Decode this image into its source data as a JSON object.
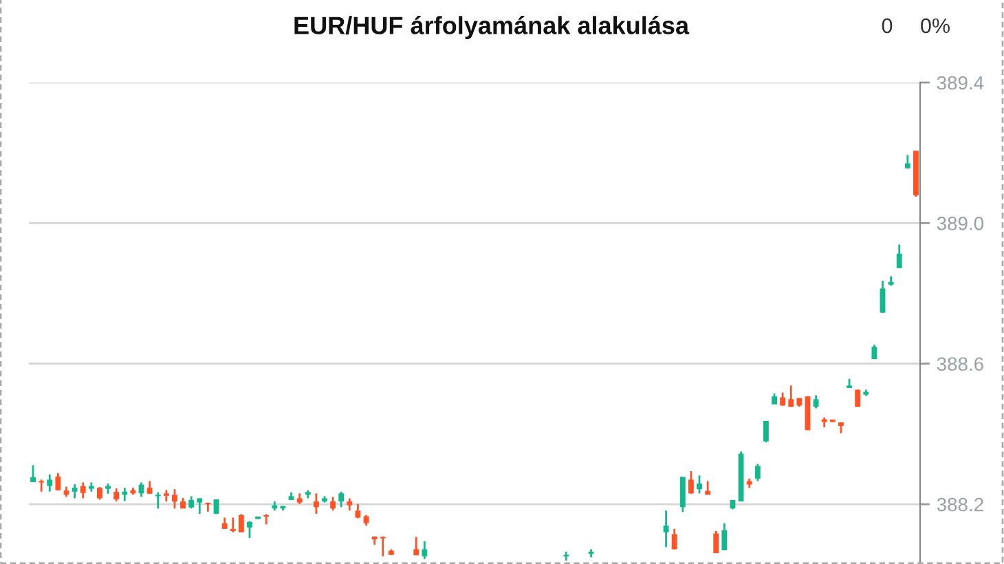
{
  "chart_data": {
    "type": "candlestick",
    "title": "EUR/HUF árfolyamának alakulása",
    "annotations": [
      "0",
      "0%"
    ],
    "categories": [
      null,
      null,
      null,
      null,
      null,
      null,
      null,
      null,
      null,
      null,
      null,
      null,
      null,
      null,
      null,
      null,
      null,
      null,
      null,
      null,
      null,
      null,
      null,
      null,
      null,
      null,
      null,
      null,
      null,
      null,
      null,
      null,
      null,
      null,
      null,
      null,
      null,
      null,
      null,
      null,
      null,
      null,
      null,
      null,
      null,
      null,
      null,
      null,
      null,
      null,
      null,
      null,
      null,
      null,
      null,
      null,
      null,
      null,
      null,
      null,
      null,
      null,
      null,
      null,
      null,
      null,
      null,
      null,
      null,
      null,
      null,
      null,
      null,
      null,
      null,
      null,
      null,
      null,
      null,
      null,
      null,
      null,
      null,
      null,
      null,
      null,
      null,
      null,
      null,
      null,
      null,
      null,
      null,
      null,
      null,
      null,
      null,
      null,
      null,
      null,
      null,
      null,
      null,
      null,
      null,
      null,
      null
    ],
    "ohlc": [
      [
        388.263,
        388.311,
        388.263,
        388.277
      ],
      [
        388.266,
        388.27,
        388.236,
        388.262
      ],
      [
        388.252,
        388.285,
        388.236,
        388.27
      ],
      [
        388.279,
        388.289,
        388.239,
        388.24
      ],
      [
        388.239,
        388.25,
        388.221,
        388.227
      ],
      [
        388.236,
        388.257,
        388.217,
        388.247
      ],
      [
        388.252,
        388.262,
        388.217,
        388.232
      ],
      [
        388.244,
        388.262,
        388.236,
        388.252
      ],
      [
        388.247,
        388.249,
        388.213,
        388.217
      ],
      [
        388.244,
        388.259,
        388.23,
        388.252
      ],
      [
        388.235,
        388.245,
        388.208,
        388.214
      ],
      [
        388.227,
        388.247,
        388.209,
        388.236
      ],
      [
        388.24,
        388.247,
        388.227,
        388.231
      ],
      [
        388.231,
        388.262,
        388.221,
        388.256
      ],
      [
        388.247,
        388.266,
        388.23,
        388.23
      ],
      [
        388.223,
        388.234,
        388.188,
        388.227
      ],
      [
        388.231,
        388.24,
        388.208,
        388.224
      ],
      [
        388.227,
        388.243,
        388.188,
        388.208
      ],
      [
        388.208,
        388.218,
        388.188,
        388.188
      ],
      [
        388.191,
        388.223,
        388.188,
        388.212
      ],
      [
        388.205,
        388.217,
        388.173,
        388.217
      ],
      [
        388.204,
        388.205,
        388.179,
        388.2
      ],
      [
        388.173,
        388.214,
        388.172,
        388.214
      ],
      [
        388.146,
        388.162,
        388.13,
        388.13
      ],
      [
        388.13,
        388.162,
        388.12,
        388.124
      ],
      [
        388.169,
        388.172,
        388.12,
        388.12
      ],
      [
        388.134,
        388.152,
        388.104,
        388.15
      ],
      [
        388.158,
        388.165,
        388.158,
        388.165
      ],
      [
        388.169,
        388.172,
        388.143,
        388.165
      ],
      [
        388.188,
        388.208,
        388.182,
        388.197
      ],
      [
        388.188,
        388.195,
        388.182,
        388.195
      ],
      [
        388.212,
        388.234,
        388.212,
        388.223
      ],
      [
        388.217,
        388.231,
        388.201,
        388.205
      ],
      [
        388.227,
        388.24,
        388.217,
        388.235
      ],
      [
        388.208,
        388.231,
        388.173,
        388.192
      ],
      [
        388.208,
        388.223,
        388.205,
        388.217
      ],
      [
        388.208,
        388.221,
        388.182,
        388.188
      ],
      [
        388.208,
        388.236,
        388.192,
        388.231
      ],
      [
        388.208,
        388.217,
        388.182,
        388.197
      ],
      [
        388.182,
        388.201,
        388.16,
        388.162
      ],
      [
        388.166,
        388.169,
        388.139,
        388.146
      ],
      [
        388.108,
        388.108,
        388.085,
        388.1
      ],
      [
        388.107,
        388.108,
        388.052,
        388.103
      ],
      [
        388.068,
        388.072,
        388.056,
        388.056
      ],
      null,
      null,
      [
        388.072,
        388.107,
        388.055,
        388.055
      ],
      [
        388.052,
        388.095,
        388.044,
        388.072
      ],
      null,
      null,
      null,
      null,
      null,
      null,
      null,
      null,
      null,
      null,
      null,
      null,
      null,
      null,
      null,
      null,
      [
        388.052,
        388.065,
        388.04,
        388.056
      ],
      null,
      null,
      [
        388.059,
        388.072,
        388.049,
        388.065
      ],
      null,
      null,
      null,
      null,
      null,
      null,
      null,
      null,
      [
        388.12,
        388.182,
        388.078,
        388.139
      ],
      [
        388.115,
        388.13,
        388.072,
        388.072
      ],
      [
        388.192,
        388.278,
        388.178,
        388.278
      ],
      [
        388.27,
        388.294,
        388.23,
        388.231
      ],
      [
        388.243,
        388.282,
        388.231,
        388.259
      ],
      [
        388.238,
        388.266,
        388.227,
        388.227
      ],
      [
        388.117,
        388.124,
        388.061,
        388.061
      ],
      [
        388.069,
        388.146,
        388.069,
        388.126
      ],
      [
        388.188,
        388.212,
        388.186,
        388.212
      ],
      [
        388.208,
        388.35,
        388.208,
        388.344
      ],
      [
        388.266,
        388.273,
        388.247,
        388.256
      ],
      [
        388.273,
        388.315,
        388.266,
        388.309
      ],
      [
        388.379,
        388.437,
        388.376,
        388.437
      ],
      [
        388.484,
        388.515,
        388.484,
        388.507
      ],
      [
        388.504,
        388.518,
        388.481,
        388.481
      ],
      [
        388.499,
        388.538,
        388.477,
        388.477
      ],
      [
        388.502,
        388.502,
        388.477,
        388.481
      ],
      [
        388.507,
        388.507,
        388.411,
        388.411
      ],
      [
        388.477,
        388.51,
        388.473,
        388.499
      ],
      [
        388.442,
        388.447,
        388.419,
        388.434
      ],
      [
        388.441,
        388.441,
        388.434,
        388.434
      ],
      [
        388.433,
        388.433,
        388.402,
        388.423
      ],
      [
        388.531,
        388.557,
        388.531,
        388.538
      ],
      [
        388.526,
        388.526,
        388.477,
        388.477
      ],
      [
        388.512,
        388.526,
        388.508,
        388.52
      ],
      [
        388.613,
        388.654,
        388.613,
        388.648
      ],
      [
        388.745,
        388.836,
        388.745,
        388.814
      ],
      [
        388.825,
        388.849,
        388.822,
        388.833
      ],
      [
        388.872,
        388.939,
        388.872,
        388.913
      ],
      [
        389.156,
        389.194,
        389.156,
        389.17
      ],
      [
        389.206,
        389.206,
        389.075,
        389.079
      ]
    ],
    "colors": [
      "#14b88c",
      "#ff5326",
      "#14b88c",
      "#ff5326",
      "#ff5326",
      "#14b88c",
      "#ff5326",
      "#14b88c",
      "#ff5326",
      "#14b88c",
      "#ff5326",
      "#14b88c",
      "#ff5326",
      "#14b88c",
      "#ff5326",
      "#14b88c",
      "#ff5326",
      "#ff5326",
      "#ff5326",
      "#14b88c",
      "#14b88c",
      "#ff5326",
      "#14b88c",
      "#ff5326",
      "#ff5326",
      "#ff5326",
      "#14b88c",
      "#14b88c",
      "#ff5326",
      "#14b88c",
      "#14b88c",
      "#14b88c",
      "#ff5326",
      "#14b88c",
      "#ff5326",
      "#14b88c",
      "#ff5326",
      "#14b88c",
      "#ff5326",
      "#ff5326",
      "#ff5326",
      "#ff5326",
      "#ff5326",
      "#ff5326",
      null,
      null,
      "#ff5326",
      "#14b88c",
      null,
      null,
      null,
      null,
      null,
      null,
      null,
      null,
      null,
      null,
      null,
      null,
      null,
      null,
      null,
      null,
      "#14b88c",
      null,
      null,
      "#14b88c",
      null,
      null,
      null,
      null,
      null,
      null,
      null,
      null,
      "#14b88c",
      "#ff5326",
      "#14b88c",
      "#ff5326",
      "#14b88c",
      "#ff5326",
      "#ff5326",
      "#14b88c",
      "#14b88c",
      "#14b88c",
      "#ff5326",
      "#14b88c",
      "#14b88c",
      "#14b88c",
      "#ff5326",
      "#ff5326",
      "#ff5326",
      "#ff5326",
      "#14b88c",
      "#ff5326",
      "#ff5326",
      "#ff5326",
      "#14b88c",
      "#ff5326",
      "#14b88c",
      "#14b88c",
      "#14b88c",
      "#14b88c",
      "#14b88c",
      "#14b88c",
      "#ff5326"
    ],
    "ylim": [
      388.03,
      389.4
    ],
    "yticks": [
      {
        "value": 388.2,
        "label": "388.2"
      },
      {
        "value": 388.6,
        "label": "388.6"
      },
      {
        "value": 389.0,
        "label": "389.0"
      },
      {
        "value": 389.4,
        "label": "389.4"
      }
    ],
    "grid": "y",
    "tick_labels": "y",
    "legend": false
  }
}
